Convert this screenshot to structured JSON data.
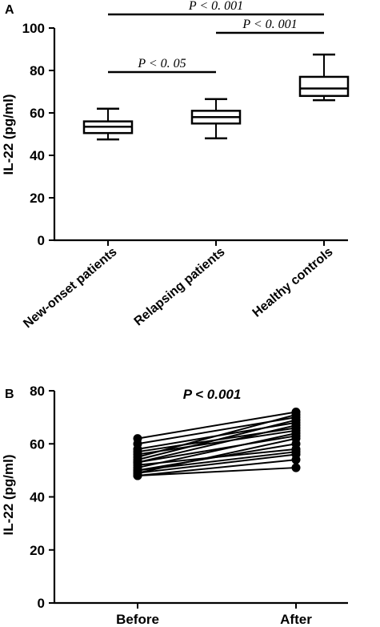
{
  "chart_data": [
    {
      "panel_label": "A",
      "type": "box",
      "ylabel": "IL-22 (pg/ml)",
      "ylim": [
        0,
        100
      ],
      "yticks": [
        0,
        20,
        40,
        60,
        80,
        100
      ],
      "categories": [
        "New-onset patients",
        "Relapsing patients",
        "Healthy controls"
      ],
      "boxes": [
        {
          "min": 47.5,
          "q1": 50.5,
          "median": 53.5,
          "q3": 56,
          "max": 62
        },
        {
          "min": 48,
          "q1": 55,
          "median": 58,
          "q3": 61,
          "max": 66.5
        },
        {
          "min": 66,
          "q1": 68,
          "median": 71.5,
          "q3": 77,
          "max": 87.5
        }
      ],
      "significance": [
        {
          "from": 0,
          "to": 1,
          "label": "P < 0. 05"
        },
        {
          "from": 1,
          "to": 2,
          "label": "P < 0. 001"
        },
        {
          "from": 0,
          "to": 2,
          "label": "P < 0. 001"
        }
      ]
    },
    {
      "panel_label": "B",
      "type": "line",
      "ylabel": "IL-22 (pg/ml)",
      "ylim": [
        0,
        80
      ],
      "yticks": [
        0,
        20,
        40,
        60,
        80
      ],
      "categories": [
        "Before",
        "After"
      ],
      "annotation": "P < 0.001",
      "pairs": [
        [
          62,
          72
        ],
        [
          60,
          70
        ],
        [
          58,
          68
        ],
        [
          57,
          66
        ],
        [
          56,
          65
        ],
        [
          55,
          71
        ],
        [
          54,
          69
        ],
        [
          53,
          63
        ],
        [
          53,
          67
        ],
        [
          52,
          58
        ],
        [
          51,
          64
        ],
        [
          50,
          57
        ],
        [
          50,
          60
        ],
        [
          49,
          62
        ],
        [
          49,
          56
        ],
        [
          48,
          54
        ],
        [
          48,
          51
        ]
      ]
    }
  ]
}
